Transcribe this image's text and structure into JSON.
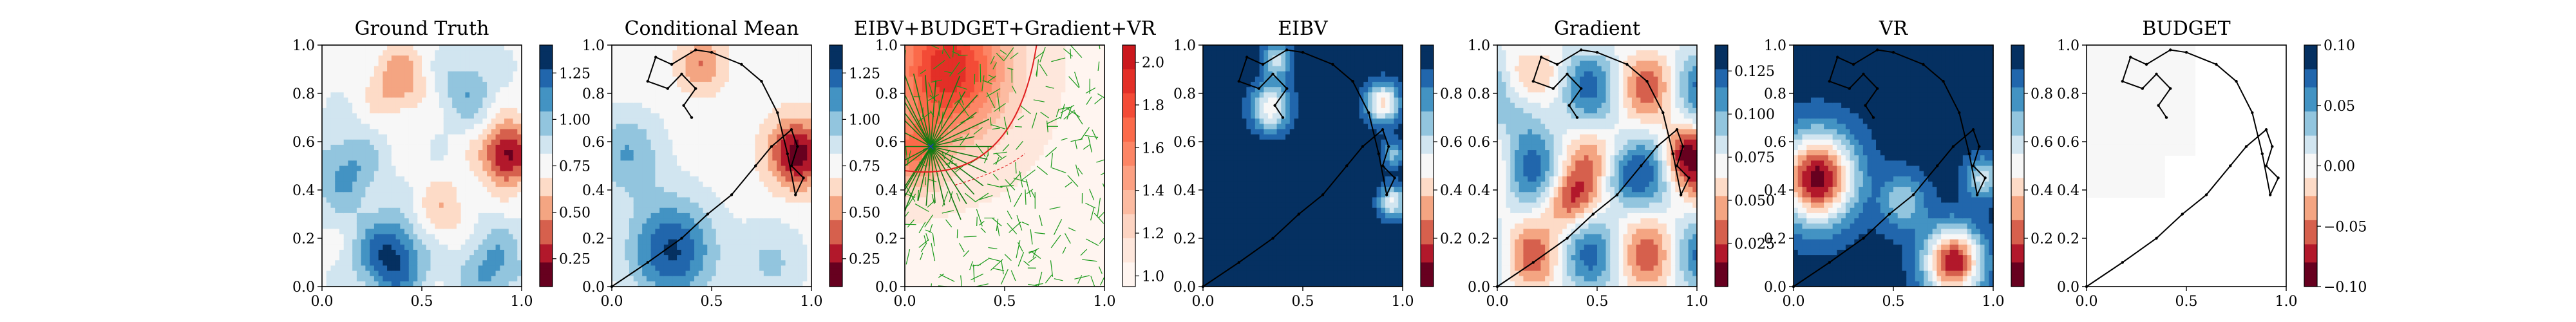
{
  "panels": [
    {
      "title": "Ground Truth",
      "field": "truth",
      "colormap": "RdBu",
      "range": [
        0.1,
        1.4
      ],
      "colorbar_ticks": [
        "0.25",
        "0.50",
        "0.75",
        "1.00",
        "1.25"
      ],
      "colorbar_tick_values": [
        0.25,
        0.5,
        0.75,
        1.0,
        1.25
      ],
      "has_path": false
    },
    {
      "title": "Conditional Mean",
      "field": "mean",
      "colormap": "RdBu",
      "range": [
        0.1,
        1.4
      ],
      "colorbar_ticks": [
        "0.25",
        "0.50",
        "0.75",
        "1.00",
        "1.25"
      ],
      "colorbar_tick_values": [
        0.25,
        0.5,
        0.75,
        1.0,
        1.25
      ],
      "has_path": true
    },
    {
      "title": "EIBV+BUDGET+Gradient+VR",
      "field": "combined",
      "colormap": "Reds",
      "range": [
        0.95,
        2.08
      ],
      "colorbar_ticks": [
        "1.0",
        "1.2",
        "1.4",
        "1.6",
        "1.8",
        "2.0"
      ],
      "colorbar_tick_values": [
        1.0,
        1.2,
        1.4,
        1.6,
        1.8,
        2.0
      ],
      "has_path": false,
      "rrt": true,
      "budget_ellipse": true
    },
    {
      "title": "EIBV",
      "field": "eibv",
      "colormap": "RdBu",
      "range": [
        0.0,
        1.0
      ],
      "colorbar_ticks": [
        "0.2",
        "0.4",
        "0.6",
        "0.8"
      ],
      "colorbar_tick_values": [
        0.2,
        0.4,
        0.6,
        0.8
      ],
      "has_path": true
    },
    {
      "title": "Gradient",
      "field": "gradient",
      "colormap": "RdBu",
      "range": [
        0.0,
        0.14
      ],
      "colorbar_ticks": [
        "0.025",
        "0.050",
        "0.075",
        "0.100",
        "0.125"
      ],
      "colorbar_tick_values": [
        0.025,
        0.05,
        0.075,
        0.1,
        0.125
      ],
      "has_path": true
    },
    {
      "title": "VR",
      "field": "vr",
      "colormap": "RdBu",
      "range": [
        0.0,
        1.0
      ],
      "colorbar_ticks": [
        "0.2",
        "0.4",
        "0.6",
        "0.8"
      ],
      "colorbar_tick_values": [
        0.2,
        0.4,
        0.6,
        0.8
      ],
      "has_path": true
    },
    {
      "title": "BUDGET",
      "field": "budget",
      "colormap": "RdBu",
      "range": [
        -0.1,
        0.1
      ],
      "colorbar_ticks": [
        "−0.10",
        "−0.05",
        "0.00",
        "0.05",
        "0.10"
      ],
      "colorbar_tick_values": [
        -0.1,
        -0.05,
        0.0,
        0.05,
        0.1
      ],
      "has_path": true
    }
  ],
  "axes": {
    "xlim": [
      0,
      1
    ],
    "ylim": [
      0,
      1
    ],
    "x_ticks": [
      "0.0",
      "0.5",
      "1.0"
    ],
    "x_tick_values": [
      0,
      0.5,
      1
    ],
    "y_ticks": [
      "0.0",
      "0.2",
      "0.4",
      "0.6",
      "0.8",
      "1.0"
    ],
    "y_tick_values": [
      0,
      0.2,
      0.4,
      0.6,
      0.8,
      1.0
    ]
  },
  "chart_data": [
    {
      "type": "heatmap",
      "title": "Ground Truth",
      "xlim": [
        0,
        1
      ],
      "ylim": [
        0,
        1
      ],
      "zlim": [
        0.1,
        1.4
      ],
      "features": [
        {
          "kind": "low",
          "x": 0.93,
          "y": 0.55,
          "value": 0.15
        },
        {
          "kind": "low",
          "x": 0.38,
          "y": 0.85,
          "value": 0.55
        },
        {
          "kind": "high",
          "x": 0.35,
          "y": 0.12,
          "value": 1.35
        },
        {
          "kind": "high",
          "x": 0.15,
          "y": 0.5,
          "value": 1.1
        },
        {
          "kind": "high",
          "x": 0.72,
          "y": 0.82,
          "value": 1.05
        }
      ]
    },
    {
      "type": "heatmap",
      "title": "Conditional Mean",
      "xlim": [
        0,
        1
      ],
      "ylim": [
        0,
        1
      ],
      "zlim": [
        0.1,
        1.4
      ],
      "features": [
        {
          "kind": "low",
          "x": 0.93,
          "y": 0.55,
          "value": 0.15
        },
        {
          "kind": "low",
          "x": 0.45,
          "y": 0.9,
          "value": 0.55
        },
        {
          "kind": "high",
          "x": 0.3,
          "y": 0.15,
          "value": 1.35
        },
        {
          "kind": "high",
          "x": 0.1,
          "y": 0.55,
          "value": 1.05
        }
      ],
      "path": [
        [
          0.0,
          0.0
        ],
        [
          0.18,
          0.1
        ],
        [
          0.35,
          0.2
        ],
        [
          0.48,
          0.3
        ],
        [
          0.6,
          0.38
        ],
        [
          0.72,
          0.5
        ],
        [
          0.8,
          0.58
        ],
        [
          0.9,
          0.65
        ],
        [
          0.93,
          0.58
        ],
        [
          0.9,
          0.5
        ],
        [
          0.96,
          0.45
        ],
        [
          0.92,
          0.38
        ],
        [
          0.88,
          0.55
        ],
        [
          0.83,
          0.72
        ],
        [
          0.75,
          0.85
        ],
        [
          0.65,
          0.92
        ],
        [
          0.5,
          0.97
        ],
        [
          0.42,
          0.98
        ],
        [
          0.3,
          0.92
        ],
        [
          0.22,
          0.95
        ],
        [
          0.18,
          0.85
        ],
        [
          0.28,
          0.82
        ],
        [
          0.35,
          0.88
        ],
        [
          0.42,
          0.82
        ],
        [
          0.36,
          0.75
        ],
        [
          0.4,
          0.7
        ]
      ]
    },
    {
      "type": "heatmap",
      "title": "EIBV+BUDGET+Gradient+VR",
      "xlim": [
        0,
        1
      ],
      "ylim": [
        0,
        1
      ],
      "zlim": [
        0.95,
        2.08
      ],
      "features": [
        {
          "kind": "high",
          "x": 0.2,
          "y": 0.9,
          "value": 2.05
        },
        {
          "kind": "high",
          "x": 0.05,
          "y": 0.55,
          "value": 1.7
        }
      ],
      "agent_position": [
        0.13,
        0.58
      ]
    },
    {
      "type": "heatmap",
      "title": "EIBV",
      "xlim": [
        0,
        1
      ],
      "ylim": [
        0,
        1
      ],
      "zlim": [
        0.0,
        1.0
      ],
      "features": [
        {
          "kind": "low",
          "x": 0.34,
          "y": 0.75,
          "value": 0.7
        },
        {
          "kind": "low",
          "x": 0.9,
          "y": 0.75,
          "value": 0.5
        },
        {
          "kind": "low",
          "x": 0.36,
          "y": 0.92,
          "value": 0.55
        },
        {
          "kind": "low",
          "x": 0.95,
          "y": 0.35,
          "value": 0.6
        }
      ]
    },
    {
      "type": "heatmap",
      "title": "Gradient",
      "xlim": [
        0,
        1
      ],
      "ylim": [
        0,
        1
      ],
      "zlim": [
        0.0,
        0.14
      ],
      "features": [
        {
          "kind": "low",
          "x": 0.15,
          "y": 0.7,
          "value": 0.11
        },
        {
          "kind": "low",
          "x": 0.6,
          "y": 0.45,
          "value": 0.1
        },
        {
          "kind": "low",
          "x": 0.25,
          "y": 0.2,
          "value": 0.09
        },
        {
          "kind": "high",
          "x": 0.93,
          "y": 0.55,
          "value": 0.03
        }
      ]
    },
    {
      "type": "heatmap",
      "title": "VR",
      "xlim": [
        0,
        1
      ],
      "ylim": [
        0,
        1
      ],
      "zlim": [
        0.0,
        1.0
      ],
      "features": [
        {
          "kind": "low",
          "x": 0.12,
          "y": 0.45,
          "value": 0.05
        },
        {
          "kind": "low",
          "x": 0.8,
          "y": 0.1,
          "value": 0.1
        },
        {
          "kind": "high",
          "x": 0.5,
          "y": 0.75,
          "value": 0.95
        }
      ]
    },
    {
      "type": "heatmap",
      "title": "BUDGET",
      "xlim": [
        0,
        1
      ],
      "ylim": [
        0,
        1
      ],
      "zlim": [
        -0.1,
        0.1
      ],
      "features": [
        {
          "kind": "region",
          "value": 0.0,
          "bounds_x": [
            0,
            0.55
          ],
          "bounds_y": [
            0.38,
            1.0
          ]
        }
      ]
    }
  ]
}
